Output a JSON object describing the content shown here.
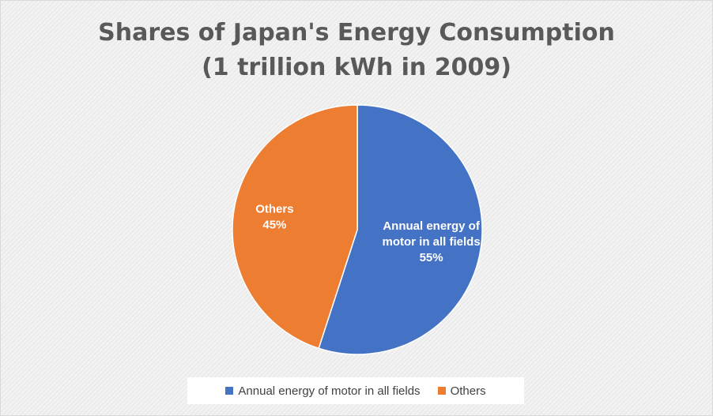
{
  "chart_data": {
    "type": "pie",
    "title": [
      "Shares of Japan's Energy Consumption",
      "(1 trillion kWh in 2009)"
    ],
    "series": [
      {
        "name": "Annual energy of motor in all fields",
        "label_lines": [
          "Annual energy of",
          "motor in all fields"
        ],
        "value": 55,
        "percent_label": "55%",
        "color": "#4472c4"
      },
      {
        "name": "Others",
        "label_lines": [
          "Others"
        ],
        "value": 45,
        "percent_label": "45%",
        "color": "#ed7d31"
      }
    ],
    "legend_position": "bottom",
    "grid": false
  }
}
